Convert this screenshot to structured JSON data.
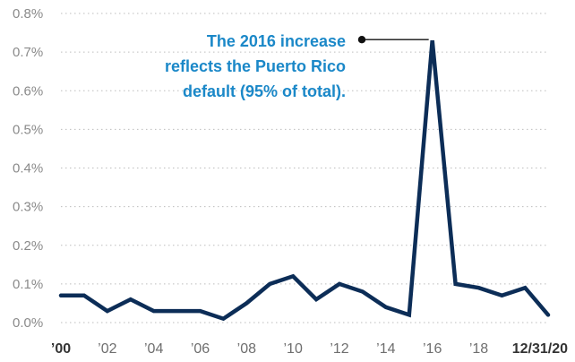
{
  "chart_data": {
    "type": "line",
    "y_tick_labels": [
      "0.0%",
      "0.1%",
      "0.2%",
      "0.3%",
      "0.4%",
      "0.5%",
      "0.6%",
      "0.7%",
      "0.8%"
    ],
    "y_tick_values": [
      0,
      0.1,
      0.2,
      0.3,
      0.4,
      0.5,
      0.6,
      0.7,
      0.8
    ],
    "ylim": [
      0,
      0.8
    ],
    "xlim": [
      2000,
      2020.99
    ],
    "x_ticks": [
      {
        "x": 2000,
        "label": "’00",
        "bold": true
      },
      {
        "x": 2002,
        "label": "’02",
        "bold": false
      },
      {
        "x": 2004,
        "label": "’04",
        "bold": false
      },
      {
        "x": 2006,
        "label": "’06",
        "bold": false
      },
      {
        "x": 2008,
        "label": "’08",
        "bold": false
      },
      {
        "x": 2010,
        "label": "’10",
        "bold": false
      },
      {
        "x": 2012,
        "label": "’12",
        "bold": false
      },
      {
        "x": 2014,
        "label": "’14",
        "bold": false
      },
      {
        "x": 2016,
        "label": "’16",
        "bold": false
      },
      {
        "x": 2018,
        "label": "’18",
        "bold": false
      },
      {
        "x": 2020.99,
        "label": "12/31/20",
        "bold": true
      }
    ],
    "grid": true,
    "series": [
      {
        "color": "#0c2d57",
        "x": [
          2000,
          2001,
          2002,
          2003,
          2004,
          2005,
          2006,
          2007,
          2008,
          2009,
          2010,
          2011,
          2012,
          2013,
          2014,
          2015,
          2016,
          2017,
          2018,
          2019,
          2019.5,
          2020,
          2020.99
        ],
        "y": [
          0.07,
          0.07,
          0.03,
          0.06,
          0.03,
          0.03,
          0.03,
          0.01,
          0.05,
          0.1,
          0.12,
          0.06,
          0.1,
          0.08,
          0.04,
          0.02,
          0.73,
          0.1,
          0.09,
          0.07,
          0.08,
          0.09,
          0.02
        ]
      }
    ],
    "annotation": {
      "lines": [
        "The 2016 increase",
        "reflects the Puerto Rico",
        "default (95% of total)."
      ],
      "target_x": 2016,
      "target_y": 0.73
    }
  }
}
